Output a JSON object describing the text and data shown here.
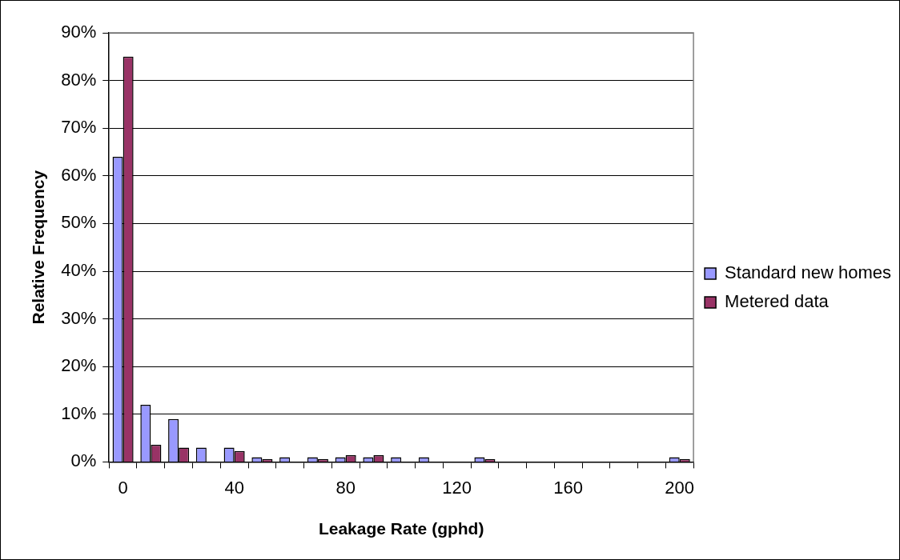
{
  "chart_data": {
    "type": "bar",
    "xlabel": "Leakage Rate (gphd)",
    "ylabel": "Relative Frequency",
    "categories": [
      "0",
      null,
      null,
      null,
      "40",
      null,
      null,
      null,
      "80",
      null,
      null,
      null,
      "120",
      null,
      null,
      null,
      "160",
      null,
      null,
      null,
      "200"
    ],
    "series": [
      {
        "name": "Standard new homes",
        "color": "#9999ff",
        "values": [
          64,
          12,
          9,
          3,
          3,
          1,
          1,
          1,
          1,
          1,
          1,
          1,
          0,
          1,
          0,
          0,
          0,
          0,
          0,
          0,
          1
        ]
      },
      {
        "name": "Metered data",
        "color": "#993366",
        "values": [
          85,
          3.6,
          3,
          0,
          2.3,
          0.6,
          0,
          0.6,
          1.4,
          1.4,
          0,
          0,
          0,
          0.6,
          0,
          0,
          0,
          0,
          0,
          0,
          0.6
        ]
      }
    ],
    "ylim": [
      0,
      90
    ],
    "yticks": [
      {
        "value": 0,
        "label": "0%"
      },
      {
        "value": 10,
        "label": "10%"
      },
      {
        "value": 20,
        "label": "20%"
      },
      {
        "value": 30,
        "label": "30%"
      },
      {
        "value": 40,
        "label": "40%"
      },
      {
        "value": 50,
        "label": "50%"
      },
      {
        "value": 60,
        "label": "60%"
      },
      {
        "value": 70,
        "label": "70%"
      },
      {
        "value": 80,
        "label": "80%"
      },
      {
        "value": 90,
        "label": "90%"
      }
    ],
    "grid": "y",
    "legend": "right"
  }
}
